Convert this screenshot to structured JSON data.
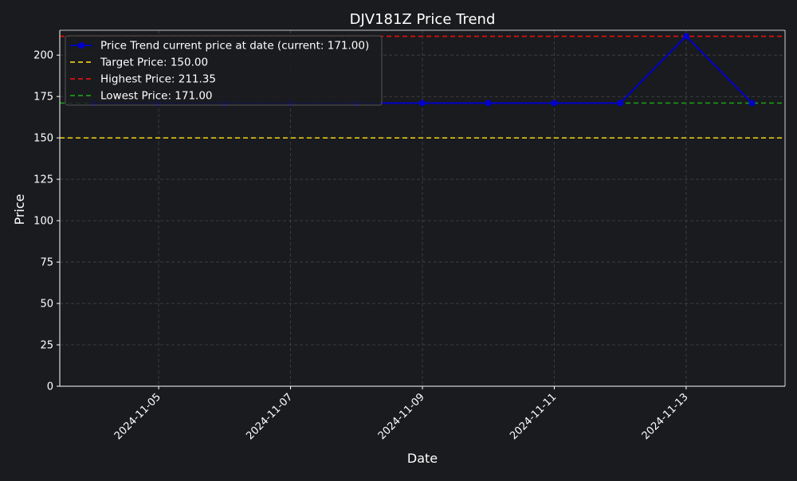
{
  "chart_data": {
    "type": "line",
    "title": "DJV181Z Price Trend",
    "xlabel": "Date",
    "ylabel": "Price",
    "ylim": [
      0,
      215
    ],
    "xlim": [
      "2024-11-03 12:00",
      "2024-11-14 12:00"
    ],
    "grid": true,
    "legend_position": "top-left",
    "x_ticks": [
      "2024-11-05",
      "2024-11-07",
      "2024-11-09",
      "2024-11-11",
      "2024-11-13"
    ],
    "y_ticks": [
      0,
      25,
      50,
      75,
      100,
      125,
      150,
      175,
      200
    ],
    "series": [
      {
        "name": "Price Trend current price at date (current: 171.00)",
        "color": "#0000cc",
        "style": "solid",
        "marker": "circle",
        "x": [
          "2024-11-04",
          "2024-11-05",
          "2024-11-06",
          "2024-11-07",
          "2024-11-08",
          "2024-11-09",
          "2024-11-10",
          "2024-11-11",
          "2024-11-12",
          "2024-11-13",
          "2024-11-14"
        ],
        "y": [
          171.0,
          171.0,
          171.0,
          171.0,
          171.0,
          171.0,
          171.0,
          171.0,
          171.0,
          211.35,
          171.0
        ]
      }
    ],
    "reference_lines": [
      {
        "name": "Target Price: 150.00",
        "value": 150.0,
        "color": "#e6c619"
      },
      {
        "name": "Highest Price: 211.35",
        "value": 211.35,
        "color": "#e01010"
      },
      {
        "name": "Lowest Price: 171.00",
        "value": 171.0,
        "color": "#1a9a1a"
      }
    ]
  }
}
